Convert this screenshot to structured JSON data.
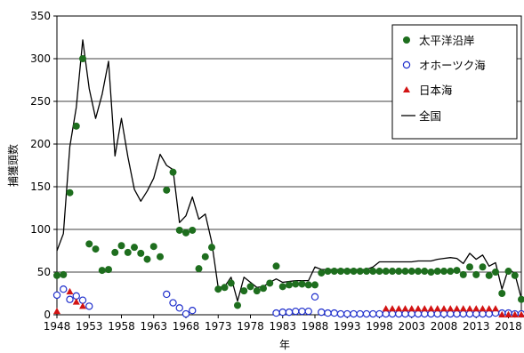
{
  "chart_data": {
    "type": "line",
    "title": "",
    "xlabel": "年",
    "ylabel": "捕獲頭数",
    "xlim": [
      1948,
      2020
    ],
    "ylim": [
      0,
      350
    ],
    "x_ticks": [
      1948,
      1953,
      1958,
      1963,
      1968,
      1973,
      1978,
      1983,
      1988,
      1993,
      1998,
      2003,
      2008,
      2013,
      2018
    ],
    "y_ticks": [
      0,
      50,
      100,
      150,
      200,
      250,
      300,
      350
    ],
    "grid": "horizontal",
    "legend_position": "top-right",
    "colors": {
      "pacific": "#1e6e1e",
      "okhotsk": "#1f2fcc",
      "japan_sea": "#d21414",
      "national": "#000000"
    },
    "series": [
      {
        "name": "太平洋沿岸",
        "marker": "filled-circle",
        "points": [
          [
            1948,
            46
          ],
          [
            1949,
            47
          ],
          [
            1950,
            143
          ],
          [
            1951,
            221
          ],
          [
            1952,
            300
          ],
          [
            1953,
            83
          ],
          [
            1954,
            77
          ],
          [
            1955,
            52
          ],
          [
            1956,
            53
          ],
          [
            1957,
            73
          ],
          [
            1958,
            81
          ],
          [
            1959,
            73
          ],
          [
            1960,
            79
          ],
          [
            1961,
            72
          ],
          [
            1962,
            65
          ],
          [
            1963,
            80
          ],
          [
            1964,
            68
          ],
          [
            1965,
            146
          ],
          [
            1966,
            167
          ],
          [
            1967,
            99
          ],
          [
            1968,
            96
          ],
          [
            1969,
            99
          ],
          [
            1970,
            54
          ],
          [
            1971,
            68
          ],
          [
            1972,
            79
          ],
          [
            1973,
            30
          ],
          [
            1974,
            32
          ],
          [
            1975,
            37
          ],
          [
            1976,
            11
          ],
          [
            1977,
            28
          ],
          [
            1978,
            33
          ],
          [
            1979,
            28
          ],
          [
            1980,
            31
          ],
          [
            1981,
            37
          ],
          [
            1982,
            57
          ],
          [
            1983,
            33
          ],
          [
            1984,
            35
          ],
          [
            1985,
            36
          ],
          [
            1986,
            36
          ],
          [
            1987,
            35
          ],
          [
            1988,
            35
          ],
          [
            1989,
            49
          ],
          [
            1990,
            51
          ],
          [
            1991,
            51
          ],
          [
            1992,
            51
          ],
          [
            1993,
            51
          ],
          [
            1994,
            51
          ],
          [
            1995,
            51
          ],
          [
            1996,
            51
          ],
          [
            1997,
            51
          ],
          [
            1998,
            51
          ],
          [
            1999,
            51
          ],
          [
            2000,
            51
          ],
          [
            2001,
            51
          ],
          [
            2002,
            51
          ],
          [
            2003,
            51
          ],
          [
            2004,
            51
          ],
          [
            2005,
            51
          ],
          [
            2006,
            50
          ],
          [
            2007,
            51
          ],
          [
            2008,
            51
          ],
          [
            2009,
            51
          ],
          [
            2010,
            52
          ],
          [
            2011,
            47
          ],
          [
            2012,
            56
          ],
          [
            2013,
            47
          ],
          [
            2014,
            56
          ],
          [
            2015,
            46
          ],
          [
            2016,
            50
          ],
          [
            2017,
            25
          ],
          [
            2018,
            51
          ],
          [
            2019,
            46
          ],
          [
            2020,
            18
          ]
        ]
      },
      {
        "name": "オホーツク海",
        "marker": "open-circle",
        "points": [
          [
            1948,
            23
          ],
          [
            1949,
            30
          ],
          [
            1950,
            18
          ],
          [
            1951,
            22
          ],
          [
            1952,
            17
          ],
          [
            1953,
            10
          ],
          [
            1965,
            24
          ],
          [
            1966,
            14
          ],
          [
            1967,
            8
          ],
          [
            1968,
            1
          ],
          [
            1969,
            5
          ],
          [
            1982,
            2
          ],
          [
            1983,
            3
          ],
          [
            1984,
            3
          ],
          [
            1985,
            4
          ],
          [
            1986,
            4
          ],
          [
            1987,
            4
          ],
          [
            1988,
            21
          ],
          [
            1989,
            3
          ],
          [
            1990,
            2
          ],
          [
            1991,
            2
          ],
          [
            1992,
            1
          ],
          [
            1993,
            1
          ],
          [
            1994,
            1
          ],
          [
            1995,
            1
          ],
          [
            1996,
            1
          ],
          [
            1997,
            1
          ],
          [
            1998,
            1
          ],
          [
            1999,
            1
          ],
          [
            2000,
            1
          ],
          [
            2001,
            1
          ],
          [
            2002,
            1
          ],
          [
            2003,
            1
          ],
          [
            2004,
            1
          ],
          [
            2005,
            1
          ],
          [
            2006,
            1
          ],
          [
            2007,
            1
          ],
          [
            2008,
            1
          ],
          [
            2009,
            1
          ],
          [
            2010,
            1
          ],
          [
            2011,
            1
          ],
          [
            2012,
            1
          ],
          [
            2013,
            1
          ],
          [
            2014,
            1
          ],
          [
            2015,
            1
          ],
          [
            2016,
            2
          ],
          [
            2017,
            2
          ],
          [
            2018,
            2
          ],
          [
            2019,
            1
          ],
          [
            2020,
            1
          ]
        ]
      },
      {
        "name": "日本海",
        "marker": "filled-triangle",
        "points": [
          [
            1948,
            4
          ],
          [
            1950,
            27
          ],
          [
            1951,
            15
          ],
          [
            1952,
            10
          ],
          [
            1999,
            7
          ],
          [
            2000,
            7
          ],
          [
            2001,
            7
          ],
          [
            2002,
            7
          ],
          [
            2003,
            7
          ],
          [
            2004,
            7
          ],
          [
            2005,
            7
          ],
          [
            2006,
            7
          ],
          [
            2007,
            7
          ],
          [
            2008,
            7
          ],
          [
            2009,
            7
          ],
          [
            2010,
            7
          ],
          [
            2011,
            7
          ],
          [
            2012,
            7
          ],
          [
            2013,
            7
          ],
          [
            2014,
            7
          ],
          [
            2015,
            7
          ],
          [
            2016,
            7
          ],
          [
            2017,
            0
          ],
          [
            2018,
            0
          ],
          [
            2019,
            0
          ],
          [
            2020,
            0
          ]
        ]
      },
      {
        "name": "全国",
        "marker": "line",
        "points": [
          [
            1948,
            75
          ],
          [
            1949,
            95
          ],
          [
            1950,
            197
          ],
          [
            1951,
            243
          ],
          [
            1952,
            322
          ],
          [
            1953,
            265
          ],
          [
            1954,
            230
          ],
          [
            1955,
            258
          ],
          [
            1956,
            297
          ],
          [
            1957,
            186
          ],
          [
            1958,
            230
          ],
          [
            1959,
            185
          ],
          [
            1960,
            147
          ],
          [
            1961,
            133
          ],
          [
            1962,
            145
          ],
          [
            1963,
            160
          ],
          [
            1964,
            188
          ],
          [
            1965,
            175
          ],
          [
            1966,
            170
          ],
          [
            1967,
            108
          ],
          [
            1968,
            116
          ],
          [
            1969,
            138
          ],
          [
            1970,
            112
          ],
          [
            1971,
            118
          ],
          [
            1972,
            85
          ],
          [
            1973,
            32
          ],
          [
            1974,
            33
          ],
          [
            1975,
            44
          ],
          [
            1976,
            16
          ],
          [
            1977,
            44
          ],
          [
            1978,
            38
          ],
          [
            1979,
            32
          ],
          [
            1980,
            33
          ],
          [
            1981,
            38
          ],
          [
            1982,
            42
          ],
          [
            1983,
            38
          ],
          [
            1984,
            39
          ],
          [
            1985,
            40
          ],
          [
            1986,
            40
          ],
          [
            1987,
            40
          ],
          [
            1988,
            56
          ],
          [
            1989,
            53
          ],
          [
            1990,
            53
          ],
          [
            1991,
            53
          ],
          [
            1992,
            53
          ],
          [
            1993,
            53
          ],
          [
            1994,
            53
          ],
          [
            1995,
            53
          ],
          [
            1996,
            53
          ],
          [
            1997,
            56
          ],
          [
            1998,
            62
          ],
          [
            1999,
            62
          ],
          [
            2000,
            62
          ],
          [
            2001,
            62
          ],
          [
            2002,
            62
          ],
          [
            2003,
            62
          ],
          [
            2004,
            63
          ],
          [
            2005,
            63
          ],
          [
            2006,
            63
          ],
          [
            2007,
            65
          ],
          [
            2008,
            66
          ],
          [
            2009,
            67
          ],
          [
            2010,
            66
          ],
          [
            2011,
            60
          ],
          [
            2012,
            72
          ],
          [
            2013,
            65
          ],
          [
            2014,
            70
          ],
          [
            2015,
            57
          ],
          [
            2016,
            61
          ],
          [
            2017,
            30
          ],
          [
            2018,
            54
          ],
          [
            2019,
            48
          ],
          [
            2020,
            19
          ]
        ]
      }
    ]
  }
}
